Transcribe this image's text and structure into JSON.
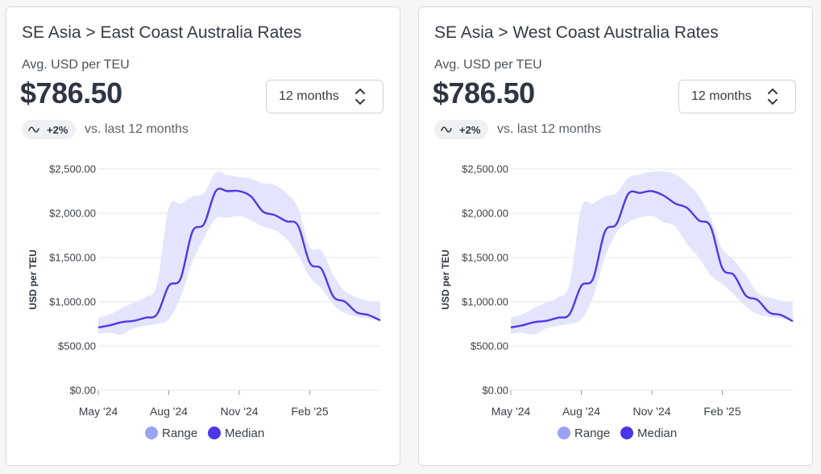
{
  "colors": {
    "range": "#e3e5fc",
    "median": "#5038e6",
    "range_legend": "#9aa3f2",
    "median_legend": "#4a35e8",
    "grid": "#e2e4e8"
  },
  "cards": [
    {
      "title": "SE Asia > East Coast Australia Rates",
      "subtitle": "Avg. USD per TEU",
      "value": "$786.50",
      "period": "12 months",
      "trend_icon": "wave-icon",
      "trend": "+2%",
      "comparison": "vs. last 12 months",
      "chart_data": {
        "type": "area",
        "ylabel": "USD per TEU",
        "ylim": [
          0,
          2500
        ],
        "y_ticks": [
          "$0.00",
          "$500.00",
          "$1,000.00",
          "$1,500.00",
          "$2,000.00",
          "$2,500.00"
        ],
        "x_ticks": [
          {
            "label": "May '24",
            "x": 0
          },
          {
            "label": "Aug '24",
            "x": 3
          },
          {
            "label": "Nov '24",
            "x": 6
          },
          {
            "label": "Feb '25",
            "x": 9
          }
        ],
        "x_range": [
          0,
          12
        ],
        "legend": [
          "Range",
          "Median"
        ],
        "series": [
          {
            "name": "Median",
            "x": [
              0,
              0.5,
              1,
              1.5,
              2,
              2.5,
              3,
              3.5,
              4,
              4.5,
              5,
              5.5,
              6,
              6.5,
              7,
              7.5,
              8,
              8.5,
              9,
              9.5,
              10,
              10.5,
              11,
              11.5,
              12
            ],
            "values": [
              710,
              735,
              770,
              785,
              820,
              860,
              1180,
              1260,
              1790,
              1880,
              2250,
              2250,
              2250,
              2190,
              2020,
              1980,
              1910,
              1860,
              1440,
              1370,
              1060,
              1000,
              880,
              850,
              790
            ]
          },
          {
            "name": "Range (upper)",
            "x": [
              0,
              0.5,
              1,
              1.5,
              2,
              2.5,
              3,
              3.5,
              4,
              4.5,
              5,
              5.5,
              6,
              6.5,
              7,
              7.5,
              8,
              8.5,
              9,
              9.5,
              10,
              10.5,
              11,
              11.5,
              12
            ],
            "values": [
              820,
              860,
              930,
              990,
              1050,
              1200,
              2060,
              2110,
              2190,
              2230,
              2460,
              2430,
              2410,
              2390,
              2340,
              2320,
              2230,
              2060,
              1620,
              1580,
              1300,
              1120,
              1050,
              1010,
              990
            ]
          },
          {
            "name": "Range (lower)",
            "x": [
              0,
              0.5,
              1,
              1.5,
              2,
              2.5,
              3,
              3.5,
              4,
              4.5,
              5,
              5.5,
              6,
              6.5,
              7,
              7.5,
              8,
              8.5,
              9,
              9.5,
              10,
              10.5,
              11,
              11.5,
              12
            ],
            "values": [
              640,
              650,
              630,
              700,
              730,
              750,
              800,
              1050,
              1450,
              1720,
              1940,
              1950,
              1970,
              1920,
              1850,
              1810,
              1710,
              1530,
              1280,
              1150,
              970,
              870,
              830,
              810,
              780
            ]
          }
        ]
      }
    },
    {
      "title": "SE Asia > West Coast Australia Rates",
      "subtitle": "Avg. USD per TEU",
      "value": "$786.50",
      "period": "12 months",
      "trend_icon": "wave-icon",
      "trend": "+2%",
      "comparison": "vs. last 12 months",
      "chart_data": {
        "type": "area",
        "ylabel": "USD per TEU",
        "ylim": [
          0,
          2500
        ],
        "y_ticks": [
          "$0.00",
          "$500.00",
          "$1,000.00",
          "$1,500.00",
          "$2,000.00",
          "$2,500.00"
        ],
        "x_ticks": [
          {
            "label": "May '24",
            "x": 0
          },
          {
            "label": "Aug '24",
            "x": 3
          },
          {
            "label": "Nov '24",
            "x": 6
          },
          {
            "label": "Feb '25",
            "x": 9
          }
        ],
        "x_range": [
          0,
          12
        ],
        "legend": [
          "Range",
          "Median"
        ],
        "series": [
          {
            "name": "Median",
            "x": [
              0,
              0.5,
              1,
              1.5,
              2,
              2.5,
              3,
              3.5,
              4,
              4.5,
              5,
              5.5,
              6,
              6.5,
              7,
              7.5,
              8,
              8.5,
              9,
              9.5,
              10,
              10.5,
              11,
              11.5,
              12
            ],
            "values": [
              710,
              735,
              770,
              785,
              820,
              860,
              1180,
              1260,
              1790,
              1880,
              2220,
              2230,
              2250,
              2200,
              2110,
              2060,
              1920,
              1850,
              1380,
              1300,
              1070,
              1020,
              880,
              850,
              780
            ]
          },
          {
            "name": "Range (upper)",
            "x": [
              0,
              0.5,
              1,
              1.5,
              2,
              2.5,
              3,
              3.5,
              4,
              4.5,
              5,
              5.5,
              6,
              6.5,
              7,
              7.5,
              8,
              8.5,
              9,
              9.5,
              10,
              10.5,
              11,
              11.5,
              12
            ],
            "values": [
              820,
              860,
              930,
              990,
              1050,
              1200,
              2060,
              2110,
              2190,
              2230,
              2400,
              2440,
              2470,
              2470,
              2440,
              2340,
              2200,
              1950,
              1600,
              1470,
              1300,
              1100,
              1050,
              1010,
              990
            ]
          },
          {
            "name": "Range (lower)",
            "x": [
              0,
              0.5,
              1,
              1.5,
              2,
              2.5,
              3,
              3.5,
              4,
              4.5,
              5,
              5.5,
              6,
              6.5,
              7,
              7.5,
              8,
              8.5,
              9,
              9.5,
              10,
              10.5,
              11,
              11.5,
              12
            ],
            "values": [
              640,
              650,
              630,
              700,
              730,
              750,
              800,
              1050,
              1500,
              1780,
              1900,
              1950,
              1970,
              1900,
              1850,
              1650,
              1500,
              1300,
              1200,
              1080,
              950,
              860,
              830,
              810,
              780
            ]
          }
        ]
      }
    }
  ]
}
